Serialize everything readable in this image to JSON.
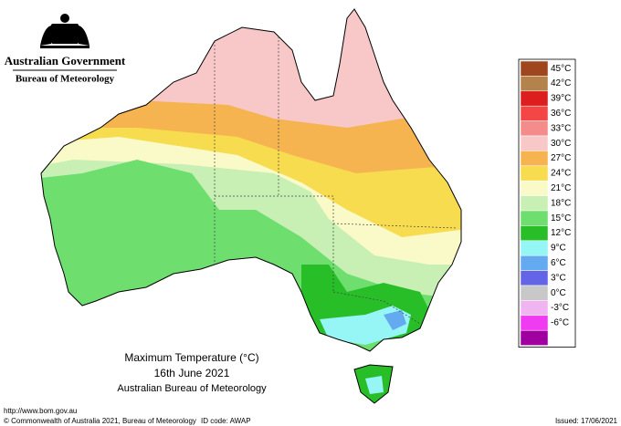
{
  "header": {
    "government": "Australian Government",
    "agency": "Bureau of Meteorology"
  },
  "map": {
    "title": "Maximum Temperature (°C)",
    "date": "16th June 2021",
    "credit": "Australian Bureau of Meteorology"
  },
  "legend": {
    "items": [
      {
        "label": "45°C",
        "color": "#a0461e"
      },
      {
        "label": "42°C",
        "color": "#b4824b"
      },
      {
        "label": "39°C",
        "color": "#dc1e1e"
      },
      {
        "label": "36°C",
        "color": "#f54646"
      },
      {
        "label": "33°C",
        "color": "#f58c8c"
      },
      {
        "label": "30°C",
        "color": "#f8c8c8"
      },
      {
        "label": "27°C",
        "color": "#f5b450"
      },
      {
        "label": "24°C",
        "color": "#f8dc50"
      },
      {
        "label": "21°C",
        "color": "#fafac8"
      },
      {
        "label": "18°C",
        "color": "#c8f0b4"
      },
      {
        "label": "15°C",
        "color": "#6ede6e"
      },
      {
        "label": "12°C",
        "color": "#28be28"
      },
      {
        "label": "9°C",
        "color": "#96f5f5"
      },
      {
        "label": "6°C",
        "color": "#64aaf0"
      },
      {
        "label": "3°C",
        "color": "#6464e6"
      },
      {
        "label": "0°C",
        "color": "#c8c8c8"
      },
      {
        "label": "-3°C",
        "color": "#f0b4f0"
      },
      {
        "label": "-6°C",
        "color": "#f03cf0"
      },
      {
        "label": null,
        "color": "#a000a0"
      }
    ]
  },
  "footer": {
    "url": "http://www.bom.gov.au",
    "copyright": "© Commonwealth of Australia 2021, Bureau of Meteorology",
    "id_code": "ID code: AWAP",
    "issued": "Issued: 17/06/2021"
  }
}
